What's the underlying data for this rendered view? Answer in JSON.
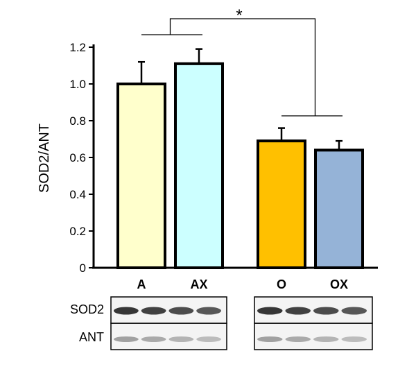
{
  "chart_data": {
    "type": "bar",
    "title": "",
    "xlabel": "",
    "ylabel": "SOD2/ANT",
    "ylim": [
      0,
      1.2
    ],
    "yticks": [
      "0",
      "0.2",
      "0.4",
      "0.6",
      "0.8",
      "1.0",
      "1.2"
    ],
    "categories": [
      "A",
      "AX",
      "O",
      "OX"
    ],
    "values": [
      1.0,
      1.11,
      0.69,
      0.64
    ],
    "errors": [
      0.12,
      0.08,
      0.07,
      0.05
    ],
    "bar_colors": [
      "#ffffcc",
      "#ccffff",
      "#ffc000",
      "#95b3d7"
    ],
    "grid": false,
    "legend": "none",
    "annotations": [
      {
        "text": "*",
        "between": [
          [
            "A",
            "AX"
          ],
          [
            "O",
            "OX"
          ]
        ]
      }
    ]
  },
  "blot": {
    "rows": [
      "SOD2",
      "ANT"
    ]
  }
}
